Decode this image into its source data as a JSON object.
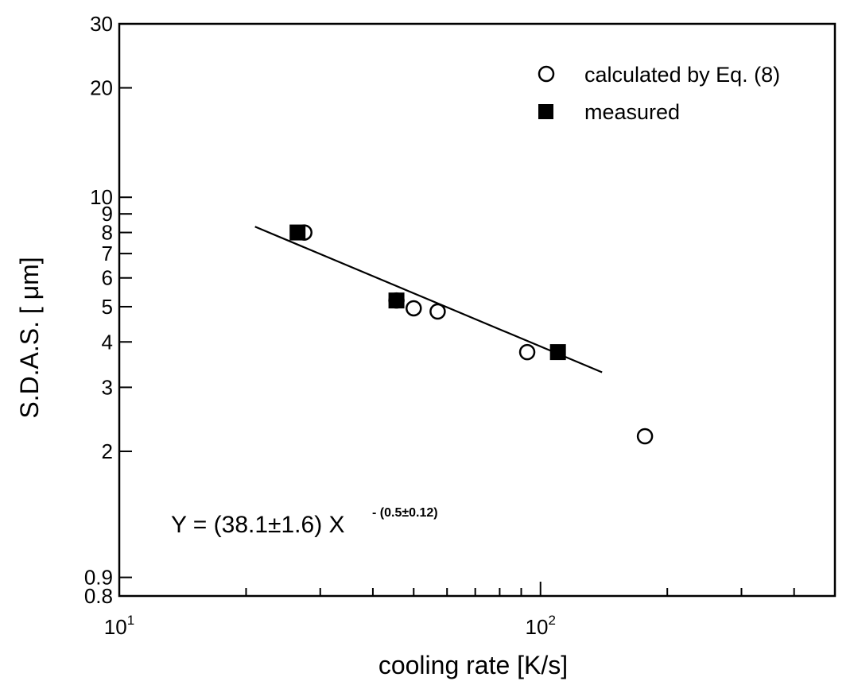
{
  "chart_data": {
    "type": "scatter",
    "xlabel": "cooling rate [K/s]",
    "ylabel": "S.D.A.S. [ μm]",
    "xscale": "log",
    "yscale": "log",
    "xlim": [
      10,
      500
    ],
    "ylim": [
      0.8,
      30
    ],
    "x_ticks": [
      {
        "value": 10,
        "base": "10",
        "exp": "1"
      },
      {
        "value": 100,
        "base": "10",
        "exp": "2"
      }
    ],
    "x_minor_ticks": [
      20,
      30,
      40,
      50,
      60,
      70,
      80,
      90,
      200,
      300,
      400
    ],
    "y_ticks": [
      {
        "value": 30,
        "label": "30"
      },
      {
        "value": 20,
        "label": "20"
      },
      {
        "value": 10,
        "label": "10"
      },
      {
        "value": 9,
        "label": "9"
      },
      {
        "value": 8,
        "label": "8"
      },
      {
        "value": 7,
        "label": "7"
      },
      {
        "value": 6,
        "label": "6"
      },
      {
        "value": 5,
        "label": "5"
      },
      {
        "value": 4,
        "label": "4"
      },
      {
        "value": 3,
        "label": "3"
      },
      {
        "value": 2,
        "label": "2"
      },
      {
        "value": 0.9,
        "label": "0.9"
      },
      {
        "value": 0.8,
        "label": "0.8"
      }
    ],
    "legend": {
      "placement": "top-right",
      "items": [
        {
          "label": "calculated by Eq. (8)",
          "marker": "open-circle"
        },
        {
          "label": "measured",
          "marker": "filled-square"
        }
      ]
    },
    "series": [
      {
        "name": "calculated by Eq. (8)",
        "marker": "open-circle",
        "points": [
          [
            27.5,
            8.0
          ],
          [
            45.5,
            5.2
          ],
          [
            50,
            4.95
          ],
          [
            57,
            4.85
          ],
          [
            93,
            3.75
          ],
          [
            177,
            2.2
          ]
        ]
      },
      {
        "name": "measured",
        "marker": "filled-square",
        "points": [
          [
            26.5,
            8.0
          ],
          [
            45.5,
            5.2
          ],
          [
            110,
            3.75
          ]
        ]
      }
    ],
    "fit_line": {
      "x": [
        21,
        140
      ],
      "y": [
        8.3,
        3.3
      ]
    },
    "annotation": {
      "main": "Y = (38.1±1.6) X",
      "superscript": " - (0.5±0.12)"
    },
    "colors": {
      "marker": "#000000",
      "line": "#000000",
      "background": "#ffffff"
    }
  }
}
